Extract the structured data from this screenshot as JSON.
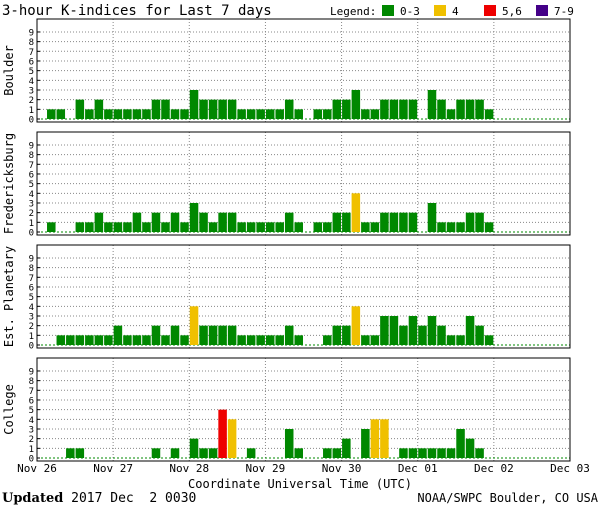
{
  "chart_data": {
    "type": "bar",
    "title": "3-hour K-indices for Last 7 days",
    "xlabel": "Coordinate Universal Time (UTC)",
    "x_ticks": [
      "Nov 26",
      "Nov 27",
      "Nov 28",
      "Nov 29",
      "Nov 30",
      "Dec 01",
      "Dec 02",
      "Dec 03"
    ],
    "ylim": [
      0,
      9
    ],
    "y_ticks": [
      "0",
      "1",
      "2",
      "3",
      "4",
      "5",
      "6",
      "7",
      "8",
      "9"
    ],
    "legend": {
      "label": "Legend:",
      "items": [
        {
          "label": "0-3",
          "color": "#008800"
        },
        {
          "label": "4",
          "color": "#f0c000"
        },
        {
          "label": "5,6",
          "color": "#ee0000"
        },
        {
          "label": "7-9",
          "color": "#440088"
        }
      ]
    },
    "panels": [
      {
        "name": "Boulder",
        "values": [
          0,
          1,
          1,
          0,
          2,
          1,
          2,
          1,
          1,
          1,
          1,
          1,
          2,
          2,
          1,
          1,
          3,
          2,
          2,
          2,
          2,
          1,
          1,
          1,
          1,
          1,
          2,
          1,
          0,
          1,
          1,
          2,
          2,
          3,
          1,
          1,
          2,
          2,
          2,
          2,
          0,
          3,
          2,
          1,
          2,
          2,
          2,
          1,
          0,
          0,
          0,
          0,
          0,
          0,
          0,
          0
        ]
      },
      {
        "name": "Fredericksburg",
        "values": [
          0,
          1,
          0,
          0,
          1,
          1,
          2,
          1,
          1,
          1,
          2,
          1,
          2,
          1,
          2,
          1,
          3,
          2,
          1,
          2,
          2,
          1,
          1,
          1,
          1,
          1,
          2,
          1,
          0,
          1,
          1,
          2,
          2,
          4,
          1,
          1,
          2,
          2,
          2,
          2,
          0,
          3,
          1,
          1,
          1,
          2,
          2,
          1,
          0,
          0,
          0,
          0,
          0,
          0,
          0,
          0
        ]
      },
      {
        "name": "Est. Planetary",
        "values": [
          0,
          0,
          1,
          1,
          1,
          1,
          1,
          1,
          2,
          1,
          1,
          1,
          2,
          1,
          2,
          1,
          4,
          2,
          2,
          2,
          2,
          1,
          1,
          1,
          1,
          1,
          2,
          1,
          0,
          0,
          1,
          2,
          2,
          4,
          1,
          1,
          3,
          3,
          2,
          3,
          2,
          3,
          2,
          1,
          1,
          3,
          2,
          1,
          0,
          0,
          0,
          0,
          0,
          0,
          0,
          0
        ]
      },
      {
        "name": "College",
        "values": [
          0,
          0,
          0,
          1,
          1,
          0,
          0,
          0,
          0,
          0,
          0,
          0,
          1,
          0,
          1,
          0,
          2,
          1,
          1,
          5,
          4,
          0,
          1,
          0,
          0,
          0,
          3,
          1,
          0,
          0,
          1,
          1,
          2,
          0,
          3,
          4,
          4,
          0,
          1,
          1,
          1,
          1,
          1,
          1,
          3,
          2,
          1,
          0,
          0,
          0,
          0,
          0,
          0,
          0,
          0,
          0
        ]
      }
    ]
  },
  "footer": {
    "updated_label": "Updated",
    "updated_value": "2017 Dec  2 0030",
    "source": "NOAA/SWPC Boulder, CO USA"
  }
}
